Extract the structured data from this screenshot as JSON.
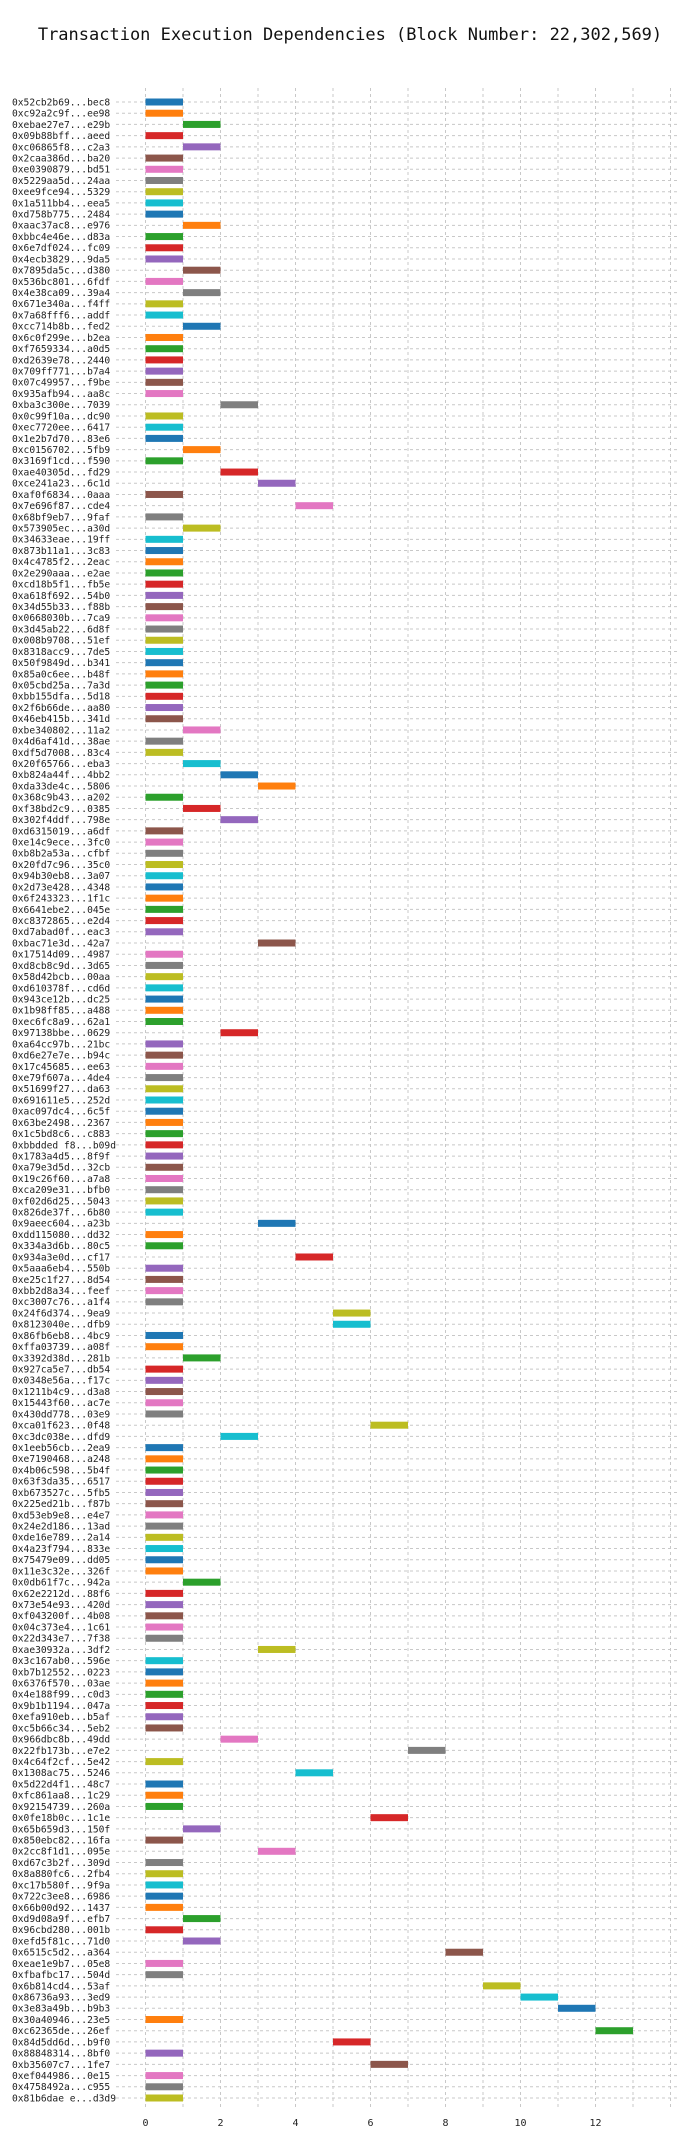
{
  "chart_data": {
    "type": "gantt",
    "title": "Transaction Execution Dependencies (Block Number: 22,302,569)",
    "xlabel": "",
    "ylabel": "",
    "xlim": [
      -1,
      14
    ],
    "x_ticks": [
      0,
      2,
      4,
      6,
      8,
      10,
      12
    ],
    "grid": true,
    "palette": [
      "#1f77b4",
      "#ff7f0e",
      "#2ca02c",
      "#d62728",
      "#9467bd",
      "#8c564b",
      "#e377c2",
      "#7f7f7f",
      "#bcbd22",
      "#17becf"
    ],
    "transactions": [
      {
        "label": "0x52cb2b69...bec8",
        "start": 0,
        "end": 1
      },
      {
        "label": "0xc92a2c9f...ee98",
        "start": 0,
        "end": 1
      },
      {
        "label": "0xebae27e7...e29b",
        "start": 1,
        "end": 2
      },
      {
        "label": "0x09b88bff...aeed",
        "start": 0,
        "end": 1
      },
      {
        "label": "0xc06865f8...c2a3",
        "start": 1,
        "end": 2
      },
      {
        "label": "0x2caa386d...ba20",
        "start": 0,
        "end": 1
      },
      {
        "label": "0xe0390879...bd51",
        "start": 0,
        "end": 1
      },
      {
        "label": "0x5229aa5d...24aa",
        "start": 0,
        "end": 1
      },
      {
        "label": "0xee9fce94...5329",
        "start": 0,
        "end": 1
      },
      {
        "label": "0x1a511bb4...eea5",
        "start": 0,
        "end": 1
      },
      {
        "label": "0xd758b775...2484",
        "start": 0,
        "end": 1
      },
      {
        "label": "0xaac37ac8...e976",
        "start": 1,
        "end": 2
      },
      {
        "label": "0xbbc4e46e...d83a",
        "start": 0,
        "end": 1
      },
      {
        "label": "0x6e7df024...fc09",
        "start": 0,
        "end": 1
      },
      {
        "label": "0x4ecb3829...9da5",
        "start": 0,
        "end": 1
      },
      {
        "label": "0x7895da5c...d380",
        "start": 1,
        "end": 2
      },
      {
        "label": "0x536bc801...6fdf",
        "start": 0,
        "end": 1
      },
      {
        "label": "0x4e38ca09...39a4",
        "start": 1,
        "end": 2
      },
      {
        "label": "0x671e340a...f4ff",
        "start": 0,
        "end": 1
      },
      {
        "label": "0x7a68fff6...addf",
        "start": 0,
        "end": 1
      },
      {
        "label": "0xcc714b8b...fed2",
        "start": 1,
        "end": 2
      },
      {
        "label": "0x6c0f299e...b2ea",
        "start": 0,
        "end": 1
      },
      {
        "label": "0xf7659334...a0d5",
        "start": 0,
        "end": 1
      },
      {
        "label": "0xd2639e78...2440",
        "start": 0,
        "end": 1
      },
      {
        "label": "0x709ff771...b7a4",
        "start": 0,
        "end": 1
      },
      {
        "label": "0x07c49957...f9be",
        "start": 0,
        "end": 1
      },
      {
        "label": "0x935afb94...aa8c",
        "start": 0,
        "end": 1
      },
      {
        "label": "0xba3c300e...7039",
        "start": 2,
        "end": 3
      },
      {
        "label": "0x0c99f10a...dc90",
        "start": 0,
        "end": 1
      },
      {
        "label": "0xec7720ee...6417",
        "start": 0,
        "end": 1
      },
      {
        "label": "0x1e2b7d70...83e6",
        "start": 0,
        "end": 1
      },
      {
        "label": "0xc0156702...5fb9",
        "start": 1,
        "end": 2
      },
      {
        "label": "0x3169f1cd...f590",
        "start": 0,
        "end": 1
      },
      {
        "label": "0xae40305d...fd29",
        "start": 2,
        "end": 3
      },
      {
        "label": "0xce241a23...6c1d",
        "start": 3,
        "end": 4
      },
      {
        "label": "0xaf0f6834...0aaa",
        "start": 0,
        "end": 1
      },
      {
        "label": "0x7e696f87...cde4",
        "start": 4,
        "end": 5
      },
      {
        "label": "0x68bf9eb7...9faf",
        "start": 0,
        "end": 1
      },
      {
        "label": "0x573905ec...a30d",
        "start": 1,
        "end": 2
      },
      {
        "label": "0x34633eae...19ff",
        "start": 0,
        "end": 1
      },
      {
        "label": "0x873b11a1...3c83",
        "start": 0,
        "end": 1
      },
      {
        "label": "0x4c4785f2...2eac",
        "start": 0,
        "end": 1
      },
      {
        "label": "0x2e290aaa...e2ae",
        "start": 0,
        "end": 1
      },
      {
        "label": "0xcd18b5f1...fb5e",
        "start": 0,
        "end": 1
      },
      {
        "label": "0xa618f692...54b0",
        "start": 0,
        "end": 1
      },
      {
        "label": "0x34d55b33...f88b",
        "start": 0,
        "end": 1
      },
      {
        "label": "0x0668030b...7ca9",
        "start": 0,
        "end": 1
      },
      {
        "label": "0x3d45ab22...6d8f",
        "start": 0,
        "end": 1
      },
      {
        "label": "0x008b9708...51ef",
        "start": 0,
        "end": 1
      },
      {
        "label": "0x8318acc9...7de5",
        "start": 0,
        "end": 1
      },
      {
        "label": "0x50f9849d...b341",
        "start": 0,
        "end": 1
      },
      {
        "label": "0x85a0c6ee...b48f",
        "start": 0,
        "end": 1
      },
      {
        "label": "0x05cbd25a...7a3d",
        "start": 0,
        "end": 1
      },
      {
        "label": "0xbb155dfa...5d18",
        "start": 0,
        "end": 1
      },
      {
        "label": "0x2f6b66de...aa80",
        "start": 0,
        "end": 1
      },
      {
        "label": "0x46eb415b...341d",
        "start": 0,
        "end": 1
      },
      {
        "label": "0xbe340802...11a2",
        "start": 1,
        "end": 2
      },
      {
        "label": "0x4d6af41d...38ae",
        "start": 0,
        "end": 1
      },
      {
        "label": "0xdf5d7008...83c4",
        "start": 0,
        "end": 1
      },
      {
        "label": "0x20f65766...eba3",
        "start": 1,
        "end": 2
      },
      {
        "label": "0xb824a44f...4bb2",
        "start": 2,
        "end": 3
      },
      {
        "label": "0xda33de4c...5806",
        "start": 3,
        "end": 4
      },
      {
        "label": "0x368c9b43...a202",
        "start": 0,
        "end": 1
      },
      {
        "label": "0xf38bd2c9...0385",
        "start": 1,
        "end": 2
      },
      {
        "label": "0x302f4ddf...798e",
        "start": 2,
        "end": 3
      },
      {
        "label": "0xd6315019...a6df",
        "start": 0,
        "end": 1
      },
      {
        "label": "0xe14c9ece...3fc0",
        "start": 0,
        "end": 1
      },
      {
        "label": "0xb8b2a53a...cfbf",
        "start": 0,
        "end": 1
      },
      {
        "label": "0x20fd7c96...35c0",
        "start": 0,
        "end": 1
      },
      {
        "label": "0x94b30eb8...3a07",
        "start": 0,
        "end": 1
      },
      {
        "label": "0x2d73e428...4348",
        "start": 0,
        "end": 1
      },
      {
        "label": "0x6f243323...1f1c",
        "start": 0,
        "end": 1
      },
      {
        "label": "0x6641ebe2...045e",
        "start": 0,
        "end": 1
      },
      {
        "label": "0xc8372865...e2d4",
        "start": 0,
        "end": 1
      },
      {
        "label": "0xd7abad0f...eac3",
        "start": 0,
        "end": 1
      },
      {
        "label": "0xbac71e3d...42a7",
        "start": 3,
        "end": 4
      },
      {
        "label": "0x17514d09...4987",
        "start": 0,
        "end": 1
      },
      {
        "label": "0xd8cb8c9d...3d65",
        "start": 0,
        "end": 1
      },
      {
        "label": "0x58d42bcb...00aa",
        "start": 0,
        "end": 1
      },
      {
        "label": "0xd610378f...cd6d",
        "start": 0,
        "end": 1
      },
      {
        "label": "0x943ce12b...dc25",
        "start": 0,
        "end": 1
      },
      {
        "label": "0x1b98ff85...a488",
        "start": 0,
        "end": 1
      },
      {
        "label": "0xec6fc8a9...62a1",
        "start": 0,
        "end": 1
      },
      {
        "label": "0x97138bbe...0629",
        "start": 2,
        "end": 3
      },
      {
        "label": "0xa64cc97b...21bc",
        "start": 0,
        "end": 1
      },
      {
        "label": "0xd6e27e7e...b94c",
        "start": 0,
        "end": 1
      },
      {
        "label": "0x17c45685...ee63",
        "start": 0,
        "end": 1
      },
      {
        "label": "0xe79f607a...4de4",
        "start": 0,
        "end": 1
      },
      {
        "label": "0x51699f27...da63",
        "start": 0,
        "end": 1
      },
      {
        "label": "0x691611e5...252d",
        "start": 0,
        "end": 1
      },
      {
        "label": "0xac097dc4...6c5f",
        "start": 0,
        "end": 1
      },
      {
        "label": "0x63be2498...2367",
        "start": 0,
        "end": 1
      },
      {
        "label": "0x1c5bd8c6...c883",
        "start": 0,
        "end": 1
      },
      {
        "label": "0xbbdded f8...b09d",
        "start": 0,
        "end": 1
      },
      {
        "label": "0x1783a4d5...8f9f",
        "start": 0,
        "end": 1
      },
      {
        "label": "0xa79e3d5d...32cb",
        "start": 0,
        "end": 1
      },
      {
        "label": "0x19c26f60...a7a8",
        "start": 0,
        "end": 1
      },
      {
        "label": "0xca209e31...bfb0",
        "start": 0,
        "end": 1
      },
      {
        "label": "0xf02d6d25...5043",
        "start": 0,
        "end": 1
      },
      {
        "label": "0x826de37f...6b80",
        "start": 0,
        "end": 1
      },
      {
        "label": "0x9aeec604...a23b",
        "start": 3,
        "end": 4
      },
      {
        "label": "0xdd115080...dd32",
        "start": 0,
        "end": 1
      },
      {
        "label": "0x334a3d6b...80c5",
        "start": 0,
        "end": 1
      },
      {
        "label": "0x934a3e0d...cf17",
        "start": 4,
        "end": 5
      },
      {
        "label": "0x5aaa6eb4...550b",
        "start": 0,
        "end": 1
      },
      {
        "label": "0xe25c1f27...8d54",
        "start": 0,
        "end": 1
      },
      {
        "label": "0xbb2d8a34...feef",
        "start": 0,
        "end": 1
      },
      {
        "label": "0xc3007c76...a1f4",
        "start": 0,
        "end": 1
      },
      {
        "label": "0x24f6d374...9ea9",
        "start": 5,
        "end": 6
      },
      {
        "label": "0x8123040e...dfb9",
        "start": 5,
        "end": 6
      },
      {
        "label": "0x86fb6eb8...4bc9",
        "start": 0,
        "end": 1
      },
      {
        "label": "0xffa03739...a08f",
        "start": 0,
        "end": 1
      },
      {
        "label": "0x3392d38d...281b",
        "start": 1,
        "end": 2
      },
      {
        "label": "0x927ca5e7...db54",
        "start": 0,
        "end": 1
      },
      {
        "label": "0x0348e56a...f17c",
        "start": 0,
        "end": 1
      },
      {
        "label": "0x1211b4c9...d3a8",
        "start": 0,
        "end": 1
      },
      {
        "label": "0x15443f60...ac7e",
        "start": 0,
        "end": 1
      },
      {
        "label": "0x430dd778...03e9",
        "start": 0,
        "end": 1
      },
      {
        "label": "0xca01f623...0f48",
        "start": 6,
        "end": 7
      },
      {
        "label": "0xc3dc038e...dfd9",
        "start": 2,
        "end": 3
      },
      {
        "label": "0x1eeb56cb...2ea9",
        "start": 0,
        "end": 1
      },
      {
        "label": "0xe7190468...a248",
        "start": 0,
        "end": 1
      },
      {
        "label": "0x4b06c598...5b4f",
        "start": 0,
        "end": 1
      },
      {
        "label": "0x63f3da35...6517",
        "start": 0,
        "end": 1
      },
      {
        "label": "0xb673527c...5fb5",
        "start": 0,
        "end": 1
      },
      {
        "label": "0x225ed21b...f87b",
        "start": 0,
        "end": 1
      },
      {
        "label": "0xd53eb9e8...e4e7",
        "start": 0,
        "end": 1
      },
      {
        "label": "0x24e2d186...13ad",
        "start": 0,
        "end": 1
      },
      {
        "label": "0xde16e789...2a14",
        "start": 0,
        "end": 1
      },
      {
        "label": "0x4a23f794...833e",
        "start": 0,
        "end": 1
      },
      {
        "label": "0x75479e09...dd05",
        "start": 0,
        "end": 1
      },
      {
        "label": "0x11e3c32e...326f",
        "start": 0,
        "end": 1
      },
      {
        "label": "0x0db61f7c...942a",
        "start": 1,
        "end": 2
      },
      {
        "label": "0x62e2212d...88f6",
        "start": 0,
        "end": 1
      },
      {
        "label": "0x73e54e93...420d",
        "start": 0,
        "end": 1
      },
      {
        "label": "0xf043200f...4b08",
        "start": 0,
        "end": 1
      },
      {
        "label": "0x04c373e4...1c61",
        "start": 0,
        "end": 1
      },
      {
        "label": "0x22d343e7...7f38",
        "start": 0,
        "end": 1
      },
      {
        "label": "0xae30932a...3df2",
        "start": 3,
        "end": 4
      },
      {
        "label": "0x3c167ab0...596e",
        "start": 0,
        "end": 1
      },
      {
        "label": "0xb7b12552...0223",
        "start": 0,
        "end": 1
      },
      {
        "label": "0x6376f570...03ae",
        "start": 0,
        "end": 1
      },
      {
        "label": "0x4e188f99...c0d3",
        "start": 0,
        "end": 1
      },
      {
        "label": "0x9b1b1194...047a",
        "start": 0,
        "end": 1
      },
      {
        "label": "0xefa910eb...b5af",
        "start": 0,
        "end": 1
      },
      {
        "label": "0xc5b66c34...5eb2",
        "start": 0,
        "end": 1
      },
      {
        "label": "0x966dbc8b...49dd",
        "start": 2,
        "end": 3
      },
      {
        "label": "0x22fb173b...e7e2",
        "start": 7,
        "end": 8
      },
      {
        "label": "0x4c64f2cf...5e42",
        "start": 0,
        "end": 1
      },
      {
        "label": "0x1308ac75...5246",
        "start": 4,
        "end": 5
      },
      {
        "label": "0x5d22d4f1...48c7",
        "start": 0,
        "end": 1
      },
      {
        "label": "0xfc861aa8...1c29",
        "start": 0,
        "end": 1
      },
      {
        "label": "0x92154739...260a",
        "start": 0,
        "end": 1
      },
      {
        "label": "0x0fe18b0c...1c1e",
        "start": 6,
        "end": 7
      },
      {
        "label": "0x65b659d3...150f",
        "start": 1,
        "end": 2
      },
      {
        "label": "0x850ebc82...16fa",
        "start": 0,
        "end": 1
      },
      {
        "label": "0x2cc8f1d1...095e",
        "start": 3,
        "end": 4
      },
      {
        "label": "0xd67c3b2f...309d",
        "start": 0,
        "end": 1
      },
      {
        "label": "0x8a880fc6...2fb4",
        "start": 0,
        "end": 1
      },
      {
        "label": "0xc17b580f...9f9a",
        "start": 0,
        "end": 1
      },
      {
        "label": "0x722c3ee8...6986",
        "start": 0,
        "end": 1
      },
      {
        "label": "0x66b00d92...1437",
        "start": 0,
        "end": 1
      },
      {
        "label": "0xd9d08a9f...efb7",
        "start": 1,
        "end": 2
      },
      {
        "label": "0x96cbd280...001b",
        "start": 0,
        "end": 1
      },
      {
        "label": "0xefd5f81c...71d0",
        "start": 1,
        "end": 2
      },
      {
        "label": "0x6515c5d2...a364",
        "start": 8,
        "end": 9
      },
      {
        "label": "0xeae1e9b7...05e8",
        "start": 0,
        "end": 1
      },
      {
        "label": "0xfbafbc17...504d",
        "start": 0,
        "end": 1
      },
      {
        "label": "0x6b814cd4...53af",
        "start": 9,
        "end": 10
      },
      {
        "label": "0x86736a93...3ed9",
        "start": 10,
        "end": 11
      },
      {
        "label": "0x3e83a49b...b9b3",
        "start": 11,
        "end": 12
      },
      {
        "label": "0x30a40946...23e5",
        "start": 0,
        "end": 1
      },
      {
        "label": "0xc62365de...26ef",
        "start": 12,
        "end": 13
      },
      {
        "label": "0x84d5dd6d...b9f0",
        "start": 5,
        "end": 6
      },
      {
        "label": "0x88848314...8bf0",
        "start": 0,
        "end": 1
      },
      {
        "label": "0xb35607c7...1fe7",
        "start": 6,
        "end": 7
      },
      {
        "label": "0xef044986...0e15",
        "start": 0,
        "end": 1
      },
      {
        "label": "0x4758492a...c955",
        "start": 0,
        "end": 1
      },
      {
        "label": "0x81b6dae e...d3d9",
        "start": 0,
        "end": 1
      }
    ]
  }
}
